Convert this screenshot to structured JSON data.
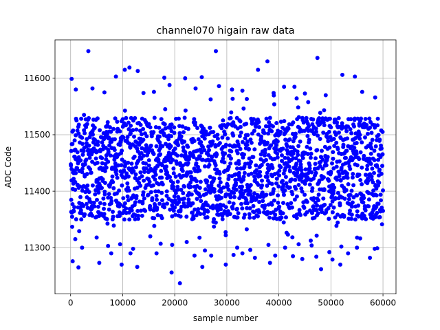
{
  "chart_data": {
    "type": "scatter",
    "title": "channel070 higain raw data",
    "xlabel": "sample number",
    "ylabel": "ADC Code",
    "xlim": [
      -3000,
      62500
    ],
    "ylim": [
      11218,
      11668
    ],
    "xticks": [
      0,
      10000,
      20000,
      30000,
      40000,
      50000,
      60000
    ],
    "yticks": [
      11300,
      11400,
      11500,
      11600
    ],
    "grid": true,
    "legend": "none",
    "marker_color": "#0000ff",
    "n_samples": 60000,
    "core_band": [
      11350,
      11530
    ],
    "points": [
      [
        3400,
        11648
      ],
      [
        27900,
        11648
      ],
      [
        47400,
        11636
      ],
      [
        37800,
        11630
      ],
      [
        11300,
        11619
      ],
      [
        10400,
        11615
      ],
      [
        12900,
        11613
      ],
      [
        8700,
        11603
      ],
      [
        18000,
        11601
      ],
      [
        25200,
        11602
      ],
      [
        52200,
        11606
      ],
      [
        54600,
        11603
      ],
      [
        22000,
        11600
      ],
      [
        200,
        11599
      ],
      [
        36000,
        11615
      ],
      [
        41000,
        11585
      ],
      [
        43000,
        11585
      ],
      [
        31000,
        11580
      ],
      [
        19000,
        11588
      ],
      [
        16000,
        11576
      ],
      [
        1000,
        11580
      ],
      [
        6500,
        11575
      ],
      [
        14000,
        11574
      ],
      [
        24000,
        11582
      ],
      [
        33000,
        11578
      ],
      [
        39000,
        11574
      ],
      [
        45000,
        11573
      ],
      [
        49000,
        11570
      ],
      [
        56000,
        11576
      ],
      [
        58500,
        11566
      ],
      [
        28500,
        11586
      ],
      [
        4200,
        11582
      ],
      [
        900,
        11315
      ],
      [
        2200,
        11300
      ],
      [
        5000,
        11318
      ],
      [
        7200,
        11303
      ],
      [
        9500,
        11306
      ],
      [
        12000,
        11298
      ],
      [
        15300,
        11320
      ],
      [
        17300,
        11307
      ],
      [
        19500,
        11305
      ],
      [
        22300,
        11310
      ],
      [
        25800,
        11295
      ],
      [
        29800,
        11322
      ],
      [
        32000,
        11300
      ],
      [
        34500,
        11296
      ],
      [
        38000,
        11305
      ],
      [
        41200,
        11300
      ],
      [
        43800,
        11306
      ],
      [
        46300,
        11304
      ],
      [
        49700,
        11292
      ],
      [
        52000,
        11302
      ],
      [
        55000,
        11300
      ],
      [
        57500,
        11282
      ],
      [
        58900,
        11299
      ],
      [
        300,
        11337
      ],
      [
        1500,
        11265
      ],
      [
        400,
        11276
      ],
      [
        5500,
        11273
      ],
      [
        7800,
        11290
      ],
      [
        9800,
        11270
      ],
      [
        11500,
        11290
      ],
      [
        12800,
        11266
      ],
      [
        16500,
        11290
      ],
      [
        19400,
        11256
      ],
      [
        21000,
        11237
      ],
      [
        23800,
        11286
      ],
      [
        25300,
        11266
      ],
      [
        27000,
        11286
      ],
      [
        29800,
        11270
      ],
      [
        31300,
        11287
      ],
      [
        33000,
        11290
      ],
      [
        35400,
        11282
      ],
      [
        38300,
        11273
      ],
      [
        39300,
        11286
      ],
      [
        42700,
        11285
      ],
      [
        44500,
        11280
      ],
      [
        47200,
        11284
      ],
      [
        48100,
        11262
      ],
      [
        50300,
        11279
      ],
      [
        51800,
        11270
      ],
      [
        53300,
        11290
      ],
      [
        58400,
        11298
      ]
    ]
  }
}
